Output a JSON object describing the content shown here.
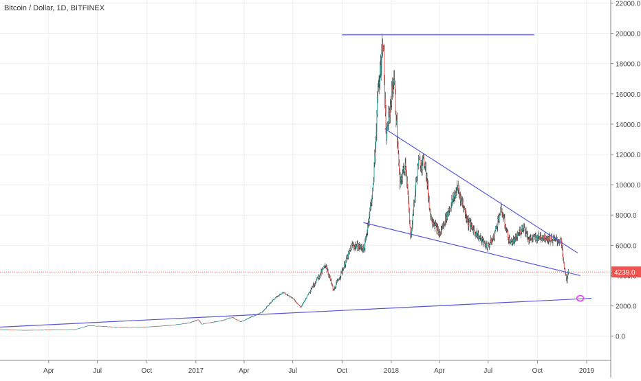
{
  "chart_data": {
    "type": "candlestick",
    "title": "Bitcoin / Dollar, 1D, BITFINEX",
    "x_ticks": [
      "Apr",
      "Jul",
      "Oct",
      "2017",
      "Apr",
      "Jul",
      "Oct",
      "2018",
      "Apr",
      "Jul",
      "Oct",
      "2019"
    ],
    "x_tick_dates": [
      "2016-04-01",
      "2016-07-01",
      "2016-10-01",
      "2017-01-01",
      "2017-04-01",
      "2017-07-01",
      "2017-10-01",
      "2018-01-01",
      "2018-04-01",
      "2018-07-01",
      "2018-10-01",
      "2019-01-01"
    ],
    "y_ticks": [
      0,
      2000,
      4000,
      6000,
      8000,
      10000,
      12000,
      14000,
      16000,
      18000,
      20000,
      22000
    ],
    "y_tick_labels": [
      "0.0",
      "2000.0",
      "4000.0",
      "6000.0",
      "8000.0",
      "10000.0",
      "12000.0",
      "14000.0",
      "16000.0",
      "18000.0",
      "20000.0",
      "22000.0"
    ],
    "ylim": [
      -1600,
      22200
    ],
    "xlim": [
      "2016-01-01",
      "2019-02-15"
    ],
    "grid": true,
    "last_price": 4239.0,
    "last_price_label": "4239.0",
    "price_path": [
      [
        "2016-01-01",
        430
      ],
      [
        "2016-02-15",
        400
      ],
      [
        "2016-04-01",
        420
      ],
      [
        "2016-05-20",
        450
      ],
      [
        "2016-06-15",
        700
      ],
      [
        "2016-07-01",
        670
      ],
      [
        "2016-08-15",
        580
      ],
      [
        "2016-10-01",
        610
      ],
      [
        "2016-11-15",
        720
      ],
      [
        "2016-12-20",
        880
      ],
      [
        "2017-01-05",
        1100
      ],
      [
        "2017-01-12",
        800
      ],
      [
        "2017-02-20",
        1050
      ],
      [
        "2017-03-10",
        1250
      ],
      [
        "2017-03-25",
        950
      ],
      [
        "2017-04-10",
        1200
      ],
      [
        "2017-05-05",
        1600
      ],
      [
        "2017-05-25",
        2400
      ],
      [
        "2017-06-12",
        2900
      ],
      [
        "2017-07-01",
        2500
      ],
      [
        "2017-07-16",
        1900
      ],
      [
        "2017-08-05",
        3200
      ],
      [
        "2017-09-01",
        4700
      ],
      [
        "2017-09-15",
        3000
      ],
      [
        "2017-10-01",
        4300
      ],
      [
        "2017-10-20",
        6000
      ],
      [
        "2017-11-12",
        5800
      ],
      [
        "2017-11-28",
        9800
      ],
      [
        "2017-12-07",
        16000
      ],
      [
        "2017-12-17",
        19800
      ],
      [
        "2017-12-22",
        13000
      ],
      [
        "2018-01-06",
        17100
      ],
      [
        "2018-01-17",
        10000
      ],
      [
        "2018-01-28",
        11500
      ],
      [
        "2018-02-06",
        6500
      ],
      [
        "2018-02-20",
        11400
      ],
      [
        "2018-03-05",
        11500
      ],
      [
        "2018-03-15",
        8000
      ],
      [
        "2018-04-01",
        6700
      ],
      [
        "2018-04-15",
        8000
      ],
      [
        "2018-05-05",
        9800
      ],
      [
        "2018-05-25",
        7500
      ],
      [
        "2018-06-15",
        6500
      ],
      [
        "2018-06-29",
        5900
      ],
      [
        "2018-07-10",
        6400
      ],
      [
        "2018-07-25",
        8400
      ],
      [
        "2018-08-10",
        6200
      ],
      [
        "2018-08-20",
        6300
      ],
      [
        "2018-09-05",
        7300
      ],
      [
        "2018-09-15",
        6400
      ],
      [
        "2018-10-10",
        6600
      ],
      [
        "2018-11-01",
        6350
      ],
      [
        "2018-11-14",
        6300
      ],
      [
        "2018-11-20",
        4500
      ],
      [
        "2018-11-25",
        3700
      ],
      [
        "2018-11-28",
        4239
      ]
    ],
    "lines": [
      {
        "label": "resistance-top",
        "from": [
          "2017-10-01",
          19900
        ],
        "to": [
          "2018-09-25",
          19900
        ]
      },
      {
        "label": "wedge-upper",
        "from": [
          "2017-12-20",
          13700
        ],
        "to": [
          "2018-12-15",
          5500
        ]
      },
      {
        "label": "wedge-lower",
        "from": [
          "2017-11-10",
          7500
        ],
        "to": [
          "2018-12-20",
          4000
        ]
      },
      {
        "label": "long-term-support",
        "from": [
          "2016-01-01",
          600
        ],
        "to": [
          "2019-01-10",
          2500
        ]
      }
    ],
    "marker": {
      "label": "circle-marker",
      "at": [
        "2018-12-20",
        2500
      ]
    },
    "colors": {
      "up": "#26a69a",
      "down": "#ef5350",
      "wick": "#222222",
      "trendline": "#5a56d6",
      "price_line": "#ef5350",
      "marker": "#e040fb",
      "grid": "#eeeeee"
    }
  }
}
